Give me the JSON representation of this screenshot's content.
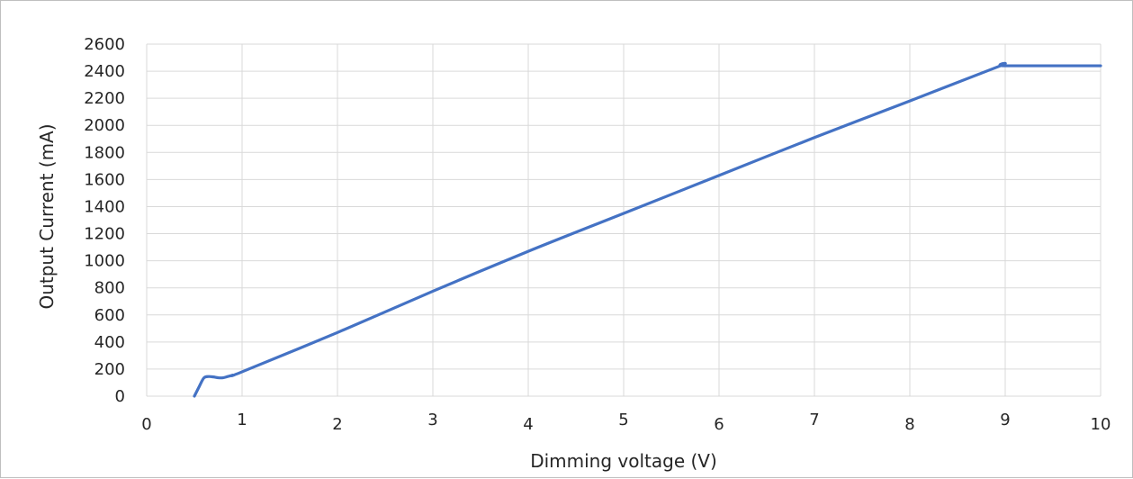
{
  "chart_data": {
    "type": "line",
    "title": "",
    "xlabel": "Dimming voltage (V)",
    "ylabel": "Output Current (mA)",
    "xlim": [
      0,
      10
    ],
    "ylim": [
      0,
      2600
    ],
    "x_ticks": [
      "0",
      "1",
      "2",
      "3",
      "4",
      "5",
      "6",
      "7",
      "8",
      "9",
      "10"
    ],
    "y_ticks": [
      "0",
      "200",
      "400",
      "600",
      "800",
      "1000",
      "1200",
      "1400",
      "1600",
      "1800",
      "2000",
      "2200",
      "2400",
      "2600"
    ],
    "grid": true,
    "legend": "none",
    "series": [
      {
        "color": "#4472c4",
        "x": [
          0.5,
          0.55,
          0.6,
          0.65,
          0.7,
          0.75,
          0.8,
          0.85,
          0.9,
          1.0,
          2.0,
          3.0,
          4.0,
          5.0,
          6.0,
          7.0,
          8.0,
          8.95,
          9.0,
          10.0
        ],
        "y": [
          0,
          70,
          135,
          145,
          142,
          136,
          136,
          145,
          155,
          180,
          470,
          775,
          1070,
          1350,
          1630,
          1910,
          2180,
          2440,
          2440,
          2440
        ]
      }
    ]
  }
}
